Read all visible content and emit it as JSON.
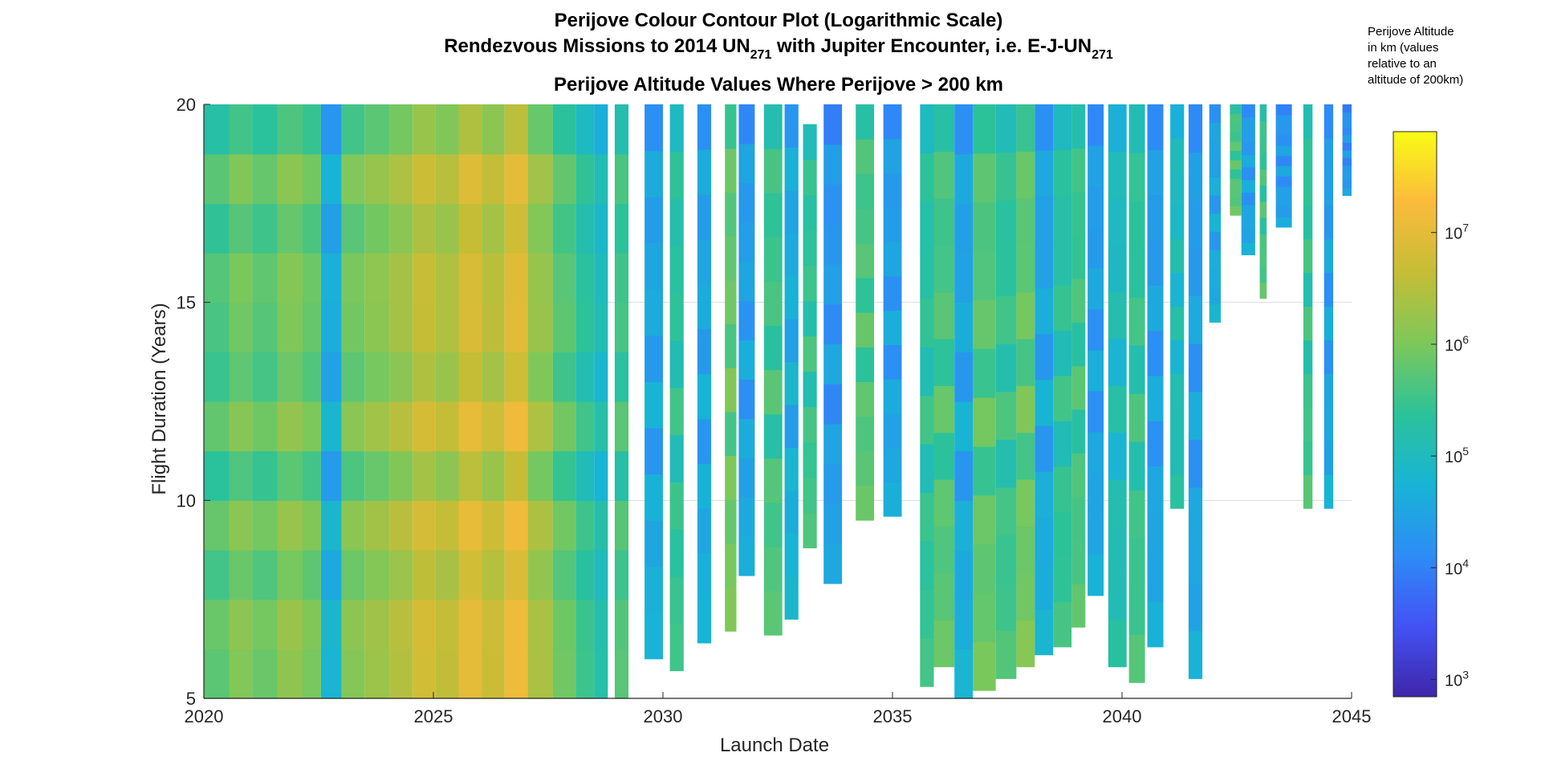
{
  "chart_data": {
    "type": "heatmap",
    "title": {
      "line1": "Perijove Colour Contour Plot (Logarithmic Scale)",
      "line2_before": "Rendezvous Missions to 2014 UN",
      "line2_sub1": "271",
      "line2_middle": " with Jupiter Encounter, i.e. E-J-UN",
      "line2_sub2": "271"
    },
    "subtitle": "Perijove Altitude Values Where Perijove > 200 km",
    "xlabel": "Launch Date",
    "ylabel": "Flight Duration (Years)",
    "xlim": [
      2020,
      2045
    ],
    "ylim": [
      5,
      20
    ],
    "xticks": [
      2020,
      2025,
      2030,
      2035,
      2040,
      2045
    ],
    "yticks": [
      5,
      10,
      15,
      20
    ],
    "grid": true,
    "colorbar": {
      "title": "Perijove Altitude in km (values relative to an altitude of 200km)",
      "scale": "log",
      "range": [
        700,
        80000000
      ],
      "ticks": [
        {
          "value": 1000,
          "label": "10",
          "exp": "3"
        },
        {
          "value": 10000,
          "label": "10",
          "exp": "4"
        },
        {
          "value": 100000,
          "label": "10",
          "exp": "5"
        },
        {
          "value": 1000000,
          "label": "10",
          "exp": "6"
        },
        {
          "value": 10000000,
          "label": "10",
          "exp": "7"
        }
      ],
      "colormap": [
        "#3e26a8",
        "#4352f5",
        "#2d8cf6",
        "#18b4d5",
        "#2bc29a",
        "#7cc85a",
        "#c5bd36",
        "#fbbb3b",
        "#f9fb15"
      ]
    },
    "columns": [
      {
        "x": 2020.0,
        "w": 0.55,
        "ymax": 20,
        "logv": 5.6
      },
      {
        "x": 2020.55,
        "w": 0.5,
        "ymax": 20,
        "logv": 5.9
      },
      {
        "x": 2021.05,
        "w": 0.55,
        "ymax": 20,
        "logv": 5.7
      },
      {
        "x": 2021.6,
        "w": 0.55,
        "ymax": 20,
        "logv": 6.0
      },
      {
        "x": 2022.15,
        "w": 0.4,
        "ymax": 20,
        "logv": 5.8
      },
      {
        "x": 2022.55,
        "w": 0.45,
        "ymax": 20,
        "logv": 4.6
      },
      {
        "x": 2023.0,
        "w": 0.5,
        "ymax": 20,
        "logv": 5.9
      },
      {
        "x": 2023.5,
        "w": 0.55,
        "ymax": 20,
        "logv": 6.1
      },
      {
        "x": 2024.05,
        "w": 0.5,
        "ymax": 20,
        "logv": 6.3
      },
      {
        "x": 2024.55,
        "w": 0.5,
        "ymax": 20,
        "logv": 6.6
      },
      {
        "x": 2025.05,
        "w": 0.5,
        "ymax": 20,
        "logv": 6.4
      },
      {
        "x": 2025.55,
        "w": 0.5,
        "ymax": 20,
        "logv": 6.8
      },
      {
        "x": 2026.05,
        "w": 0.5,
        "ymax": 20,
        "logv": 6.5
      },
      {
        "x": 2026.55,
        "w": 0.5,
        "ymax": 20,
        "logv": 6.9
      },
      {
        "x": 2027.05,
        "w": 0.55,
        "ymax": 20,
        "logv": 6.2
      },
      {
        "x": 2027.6,
        "w": 0.5,
        "ymax": 20,
        "logv": 5.7
      },
      {
        "x": 2028.1,
        "w": 0.4,
        "ymax": 20,
        "logv": 5.3
      },
      {
        "x": 2028.5,
        "w": 0.3,
        "ymax": 20,
        "logv": 5.0
      },
      {
        "x": 2028.95,
        "w": 0.3,
        "ymax": 20,
        "logv": 5.5
      },
      {
        "x": 2029.6,
        "w": 0.4,
        "ymax": 20,
        "logv": 4.5
      },
      {
        "x": 2030.15,
        "w": 0.3,
        "ymax": 20,
        "logv": 5.3
      },
      {
        "x": 2030.75,
        "w": 0.3,
        "ymax": 20,
        "logv": 4.5
      },
      {
        "x": 2031.35,
        "w": 0.25,
        "ymax": 20,
        "logv": 5.8
      },
      {
        "x": 2031.65,
        "w": 0.35,
        "ymax": 20,
        "logv": 4.4
      },
      {
        "x": 2032.2,
        "w": 0.4,
        "ymax": 20,
        "logv": 5.5
      },
      {
        "x": 2032.65,
        "w": 0.3,
        "ymax": 20,
        "logv": 4.6
      },
      {
        "x": 2033.05,
        "w": 0.3,
        "ymax": 19.5,
        "logv": 5.4
      },
      {
        "x": 2033.5,
        "w": 0.4,
        "ymax": 20,
        "logv": 4.3
      },
      {
        "x": 2034.2,
        "w": 0.4,
        "ymax": 20,
        "logv": 5.6
      },
      {
        "x": 2034.8,
        "w": 0.4,
        "ymax": 20,
        "logv": 4.4
      },
      {
        "x": 2035.6,
        "w": 0.3,
        "ymax": 20,
        "logv": 5.3
      },
      {
        "x": 2035.9,
        "w": 0.45,
        "ymax": 20,
        "logv": 5.6
      },
      {
        "x": 2036.35,
        "w": 0.4,
        "ymax": 20,
        "logv": 4.5
      },
      {
        "x": 2036.75,
        "w": 0.5,
        "ymax": 20,
        "logv": 5.7
      },
      {
        "x": 2037.25,
        "w": 0.45,
        "ymax": 20,
        "logv": 5.4
      },
      {
        "x": 2037.7,
        "w": 0.4,
        "ymax": 20,
        "logv": 5.8
      },
      {
        "x": 2038.1,
        "w": 0.4,
        "ymax": 20,
        "logv": 4.5
      },
      {
        "x": 2038.5,
        "w": 0.4,
        "ymax": 20,
        "logv": 5.3
      },
      {
        "x": 2038.9,
        "w": 0.3,
        "ymax": 20,
        "logv": 5.5
      },
      {
        "x": 2039.25,
        "w": 0.35,
        "ymax": 20,
        "logv": 4.4
      },
      {
        "x": 2039.7,
        "w": 0.4,
        "ymax": 20,
        "logv": 5.0
      },
      {
        "x": 2040.15,
        "w": 0.35,
        "ymax": 20,
        "logv": 5.4
      },
      {
        "x": 2040.55,
        "w": 0.35,
        "ymax": 20,
        "logv": 4.4
      },
      {
        "x": 2041.05,
        "w": 0.3,
        "ymax": 20,
        "logv": 5.0
      },
      {
        "x": 2041.45,
        "w": 0.3,
        "ymax": 20,
        "logv": 4.4
      },
      {
        "x": 2041.9,
        "w": 0.25,
        "ymax": 20,
        "logv": 4.5
      },
      {
        "x": 2042.35,
        "w": 0.25,
        "ymax": 20,
        "logv": 5.6
      },
      {
        "x": 2042.6,
        "w": 0.3,
        "ymax": 20,
        "logv": 4.4
      },
      {
        "x": 2043.0,
        "w": 0.15,
        "ymax": 20,
        "logv": 5.5
      },
      {
        "x": 2043.35,
        "w": 0.35,
        "ymax": 20,
        "logv": 4.3
      },
      {
        "x": 2043.95,
        "w": 0.2,
        "ymax": 20,
        "logv": 5.4
      },
      {
        "x": 2044.4,
        "w": 0.2,
        "ymax": 20,
        "logv": 4.4
      },
      {
        "x": 2044.8,
        "w": 0.2,
        "ymax": 20,
        "logv": 4.2
      }
    ],
    "column_bottoms": [
      5,
      5,
      5,
      5,
      5,
      5,
      5,
      5,
      5,
      5,
      5,
      5,
      5,
      5,
      5,
      5,
      5,
      5,
      5,
      6.0,
      5.7,
      6.4,
      6.7,
      8.1,
      6.6,
      7.0,
      8.8,
      7.9,
      9.5,
      9.6,
      5.3,
      5.8,
      5.0,
      5.2,
      5.5,
      5.8,
      6.1,
      6.3,
      6.8,
      7.6,
      5.8,
      5.4,
      6.3,
      9.8,
      5.5,
      14.5,
      17.2,
      16.2,
      15.1,
      16.9,
      9.8,
      9.8,
      17.7
    ]
  }
}
